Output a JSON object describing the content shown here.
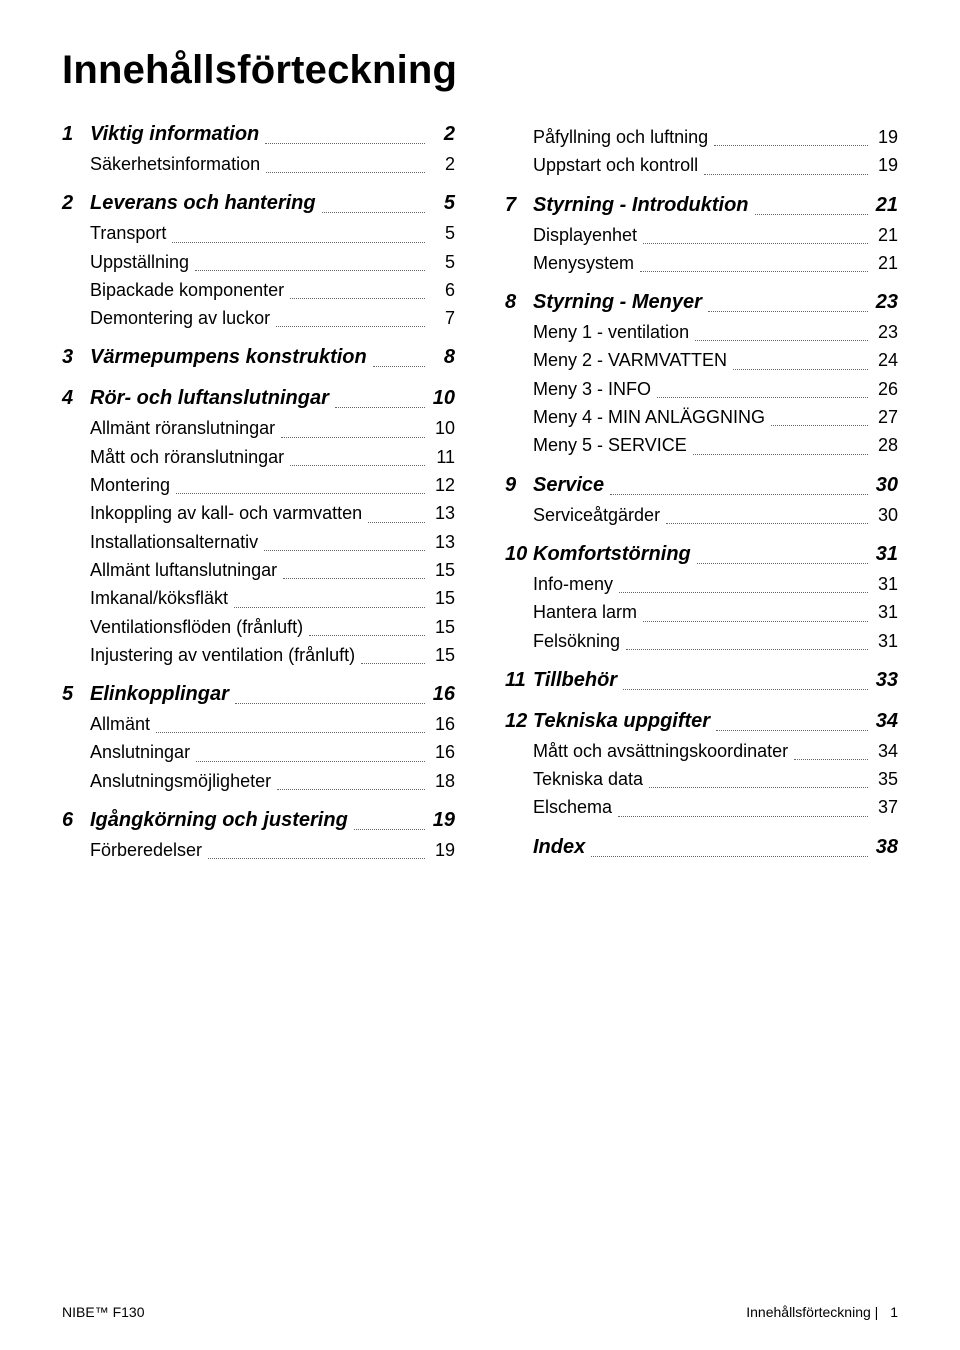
{
  "title": "Innehållsförteckning",
  "footer": {
    "left": "NIBE™ F130",
    "right_title": "Innehållsförteckning |",
    "right_page": "1"
  },
  "columns": [
    [
      {
        "type": "section",
        "num": "1",
        "label": "Viktig information",
        "page": "2"
      },
      {
        "type": "sub",
        "label": "Säkerhetsinformation",
        "page": "2"
      },
      {
        "type": "section",
        "num": "2",
        "label": "Leverans och hantering",
        "page": "5"
      },
      {
        "type": "sub",
        "label": "Transport",
        "page": "5"
      },
      {
        "type": "sub",
        "label": "Uppställning",
        "page": "5"
      },
      {
        "type": "sub",
        "label": "Bipackade komponenter",
        "page": "6"
      },
      {
        "type": "sub",
        "label": "Demontering av luckor",
        "page": "7"
      },
      {
        "type": "section",
        "num": "3",
        "label": "Värmepumpens konstruktion",
        "page": "8"
      },
      {
        "type": "section",
        "num": "4",
        "label": "Rör- och luftanslutningar",
        "page": "10"
      },
      {
        "type": "sub",
        "label": "Allmänt röranslutningar",
        "page": "10"
      },
      {
        "type": "sub",
        "label": "Mått och röranslutningar",
        "page": "11"
      },
      {
        "type": "sub",
        "label": "Montering",
        "page": "12"
      },
      {
        "type": "sub",
        "label": "Inkoppling av kall- och varmvatten",
        "page": "13"
      },
      {
        "type": "sub",
        "label": "Installationsalternativ",
        "page": "13"
      },
      {
        "type": "sub",
        "label": "Allmänt luftanslutningar",
        "page": "15"
      },
      {
        "type": "sub",
        "label": "Imkanal/köksfläkt",
        "page": "15"
      },
      {
        "type": "sub",
        "label": "Ventilationsflöden (frånluft)",
        "page": "15"
      },
      {
        "type": "sub",
        "label": "Injustering av ventilation (frånluft)",
        "page": "15"
      },
      {
        "type": "section",
        "num": "5",
        "label": "Elinkopplingar",
        "page": "16"
      },
      {
        "type": "sub",
        "label": "Allmänt",
        "page": "16"
      },
      {
        "type": "sub",
        "label": "Anslutningar",
        "page": "16"
      },
      {
        "type": "sub",
        "label": "Anslutningsmöjligheter",
        "page": "18"
      },
      {
        "type": "section",
        "num": "6",
        "label": "Igångkörning och justering",
        "page": "19"
      },
      {
        "type": "sub",
        "label": "Förberedelser",
        "page": "19"
      }
    ],
    [
      {
        "type": "sub",
        "label": "Påfyllning och luftning",
        "page": "19"
      },
      {
        "type": "sub",
        "label": "Uppstart och kontroll",
        "page": "19"
      },
      {
        "type": "section",
        "num": "7",
        "label": "Styrning - Introduktion",
        "page": "21"
      },
      {
        "type": "sub",
        "label": "Displayenhet",
        "page": "21"
      },
      {
        "type": "sub",
        "label": "Menysystem",
        "page": "21"
      },
      {
        "type": "section",
        "num": "8",
        "label": "Styrning - Menyer",
        "page": "23"
      },
      {
        "type": "sub",
        "label": "Meny 1 - ventilation",
        "page": "23"
      },
      {
        "type": "sub",
        "label": "Meny 2 - VARMVATTEN",
        "page": "24"
      },
      {
        "type": "sub",
        "label": "Meny 3 - INFO",
        "page": "26"
      },
      {
        "type": "sub",
        "label": "Meny 4 - MIN ANLÄGGNING",
        "page": "27"
      },
      {
        "type": "sub",
        "label": "Meny 5 - SERVICE",
        "page": "28"
      },
      {
        "type": "section",
        "num": "9",
        "label": "Service",
        "page": "30"
      },
      {
        "type": "sub",
        "label": "Serviceåtgärder",
        "page": "30"
      },
      {
        "type": "section",
        "num": "10",
        "label": "Komfortstörning",
        "page": "31"
      },
      {
        "type": "sub",
        "label": "Info-meny",
        "page": "31"
      },
      {
        "type": "sub",
        "label": "Hantera larm",
        "page": "31"
      },
      {
        "type": "sub",
        "label": "Felsökning",
        "page": "31"
      },
      {
        "type": "section",
        "num": "11",
        "label": "Tillbehör",
        "page": "33"
      },
      {
        "type": "section",
        "num": "12",
        "label": "Tekniska uppgifter",
        "page": "34"
      },
      {
        "type": "sub",
        "label": "Mått och avsättningskoordinater",
        "page": "34"
      },
      {
        "type": "sub",
        "label": "Tekniska data",
        "page": "35"
      },
      {
        "type": "sub",
        "label": "Elschema",
        "page": "37"
      },
      {
        "type": "nonum",
        "label": "Index",
        "page": "38"
      }
    ]
  ]
}
